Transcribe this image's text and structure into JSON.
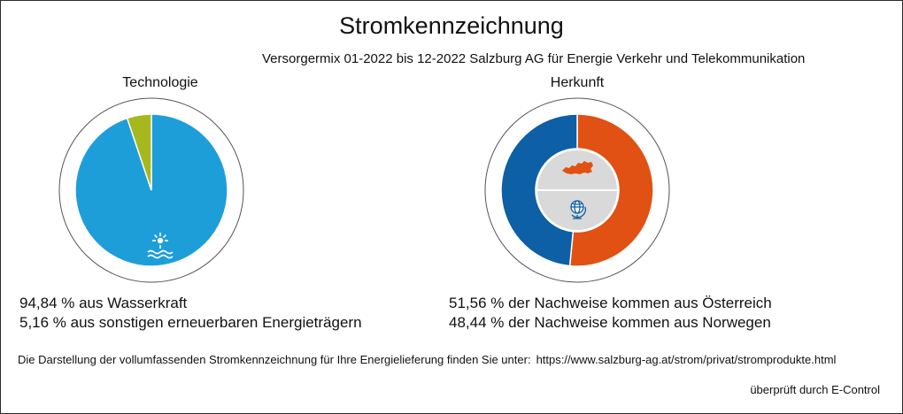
{
  "title": "Stromkennzeichnung",
  "subtitle": "Versorgermix 01-2022 bis 12-2022 Salzburg AG für Energie Verkehr und Telekommunikation",
  "chart_data": [
    {
      "type": "pie",
      "title": "Technologie",
      "categories": [
        "Wasserkraft",
        "sonstige erneuerbare Energieträger"
      ],
      "values": [
        94.84,
        5.16
      ],
      "colors": [
        "#1e9ed9",
        "#a6b81c"
      ],
      "icons": [
        "water-power-icon"
      ],
      "labels": [
        "94,84 % aus Wasserkraft",
        "5,16 % aus sonstigen erneuerbaren Energieträgern"
      ]
    },
    {
      "type": "pie",
      "title": "Herkunft",
      "categories": [
        "Österreich",
        "Norwegen"
      ],
      "values": [
        51.56,
        48.44
      ],
      "colors": [
        "#e05113",
        "#0d5fa6"
      ],
      "icons": [
        "austria-map-icon",
        "globe-icon"
      ],
      "labels": [
        "51,56 % der Nachweise kommen aus Österreich",
        "48,44 % der Nachweise kommen aus Norwegen"
      ]
    }
  ],
  "footer": {
    "text": "Die Darstellung der vollumfassenden Stromkennzeichnung für Ihre Energielieferung finden Sie unter:",
    "url": "https://www.salzburg-ag.at/strom/privat/stromprodukte.html"
  },
  "verified": "überprüft durch E-Control"
}
